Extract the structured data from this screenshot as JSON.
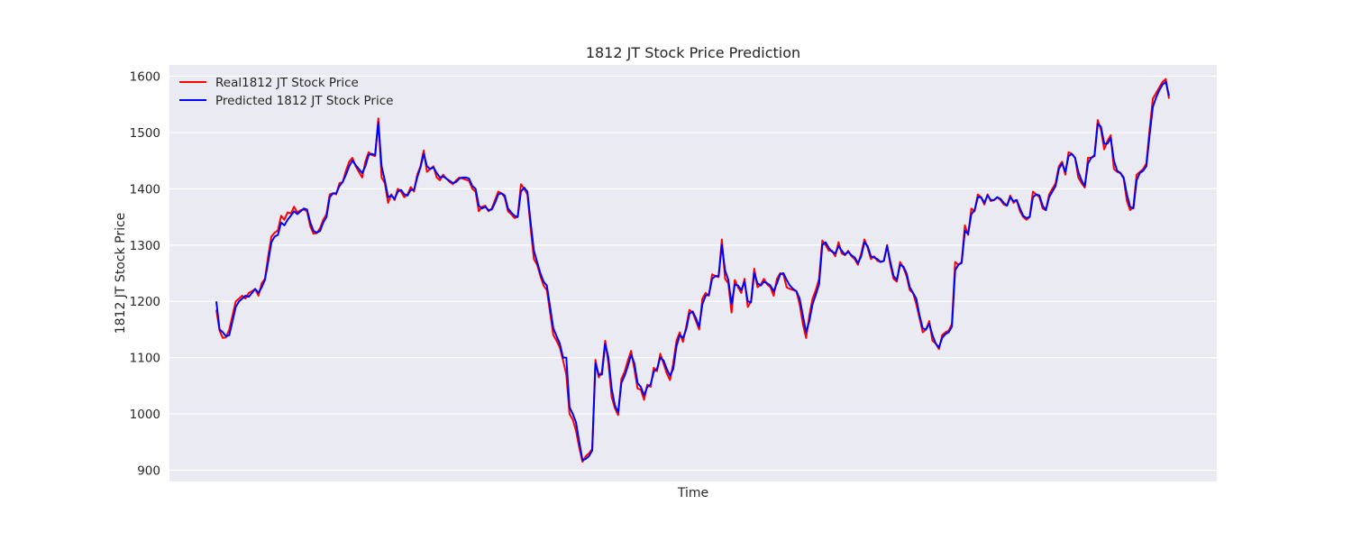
{
  "chart_data": {
    "type": "line",
    "title": "1812 JT Stock Price Prediction",
    "xlabel": "Time",
    "ylabel": "1812 JT Stock Price",
    "ylim": [
      880,
      1620
    ],
    "yticks": [
      900,
      1000,
      1100,
      1200,
      1300,
      1400,
      1500,
      1600
    ],
    "grid": true,
    "legend_position": "top-left",
    "series": [
      {
        "name": "Real1812 JT Stock Price",
        "color": "#ff0000",
        "values": [
          1185,
          1148,
          1135,
          1136,
          1150,
          1175,
          1200,
          1205,
          1210,
          1205,
          1215,
          1218,
          1222,
          1210,
          1232,
          1240,
          1280,
          1315,
          1322,
          1326,
          1352,
          1345,
          1358,
          1356,
          1368,
          1358,
          1362,
          1363,
          1360,
          1333,
          1320,
          1321,
          1330,
          1345,
          1355,
          1390,
          1392,
          1390,
          1410,
          1412,
          1432,
          1448,
          1455,
          1440,
          1430,
          1420,
          1448,
          1465,
          1460,
          1458,
          1525,
          1420,
          1410,
          1375,
          1390,
          1380,
          1400,
          1395,
          1385,
          1390,
          1403,
          1395,
          1425,
          1440,
          1468,
          1430,
          1435,
          1440,
          1420,
          1415,
          1425,
          1418,
          1412,
          1408,
          1415,
          1420,
          1418,
          1416,
          1414,
          1400,
          1395,
          1360,
          1368,
          1370,
          1360,
          1365,
          1380,
          1395,
          1392,
          1385,
          1360,
          1355,
          1348,
          1350,
          1408,
          1400,
          1390,
          1330,
          1275,
          1265,
          1245,
          1228,
          1220,
          1180,
          1140,
          1130,
          1118,
          1095,
          1070,
          1000,
          990,
          970,
          940,
          915,
          925,
          930,
          938,
          1096,
          1065,
          1075,
          1130,
          1090,
          1030,
          1010,
          998,
          1062,
          1075,
          1095,
          1112,
          1080,
          1045,
          1043,
          1025,
          1052,
          1048,
          1082,
          1076,
          1107,
          1090,
          1072,
          1060,
          1090,
          1130,
          1145,
          1128,
          1155,
          1185,
          1180,
          1165,
          1150,
          1205,
          1215,
          1210,
          1248,
          1245,
          1243,
          1310,
          1240,
          1232,
          1180,
          1238,
          1225,
          1215,
          1240,
          1190,
          1200,
          1258,
          1225,
          1230,
          1240,
          1230,
          1225,
          1210,
          1240,
          1250,
          1248,
          1225,
          1222,
          1220,
          1218,
          1195,
          1160,
          1135,
          1175,
          1205,
          1220,
          1240,
          1308,
          1300,
          1290,
          1290,
          1280,
          1305,
          1285,
          1282,
          1290,
          1280,
          1275,
          1265,
          1285,
          1310,
          1295,
          1275,
          1280,
          1272,
          1270,
          1272,
          1300,
          1265,
          1240,
          1235,
          1270,
          1260,
          1245,
          1220,
          1215,
          1195,
          1170,
          1145,
          1150,
          1165,
          1130,
          1125,
          1115,
          1140,
          1145,
          1148,
          1160,
          1270,
          1265,
          1270,
          1335,
          1318,
          1365,
          1360,
          1390,
          1385,
          1372,
          1390,
          1378,
          1380,
          1385,
          1380,
          1372,
          1370,
          1388,
          1375,
          1380,
          1360,
          1350,
          1345,
          1350,
          1395,
          1390,
          1385,
          1365,
          1362,
          1390,
          1400,
          1410,
          1440,
          1448,
          1425,
          1465,
          1462,
          1455,
          1420,
          1410,
          1402,
          1455,
          1455,
          1460,
          1522,
          1505,
          1470,
          1485,
          1495,
          1435,
          1430,
          1428,
          1418,
          1378,
          1362,
          1368,
          1425,
          1430,
          1435,
          1445,
          1505,
          1560,
          1570,
          1580,
          1590,
          1595,
          1560
        ]
      },
      {
        "name": "Predicted 1812 JT Stock Price",
        "color": "#0000ff",
        "values": [
          1200,
          1150,
          1145,
          1138,
          1140,
          1165,
          1190,
          1200,
          1205,
          1210,
          1208,
          1215,
          1222,
          1215,
          1225,
          1238,
          1270,
          1305,
          1315,
          1318,
          1340,
          1335,
          1345,
          1352,
          1360,
          1355,
          1360,
          1365,
          1363,
          1340,
          1325,
          1322,
          1325,
          1340,
          1350,
          1385,
          1392,
          1392,
          1405,
          1412,
          1425,
          1440,
          1450,
          1442,
          1435,
          1428,
          1440,
          1460,
          1462,
          1460,
          1518,
          1440,
          1415,
          1385,
          1388,
          1382,
          1395,
          1398,
          1390,
          1388,
          1398,
          1398,
          1420,
          1438,
          1462,
          1440,
          1435,
          1438,
          1428,
          1420,
          1422,
          1418,
          1414,
          1410,
          1412,
          1418,
          1420,
          1420,
          1418,
          1405,
          1400,
          1370,
          1365,
          1368,
          1362,
          1363,
          1375,
          1390,
          1392,
          1388,
          1365,
          1358,
          1352,
          1350,
          1395,
          1402,
          1395,
          1340,
          1290,
          1270,
          1250,
          1235,
          1228,
          1190,
          1152,
          1138,
          1125,
          1100,
          1100,
          1012,
          1000,
          985,
          950,
          918,
          920,
          925,
          935,
          1090,
          1070,
          1070,
          1125,
          1100,
          1045,
          1015,
          1003,
          1055,
          1068,
          1085,
          1105,
          1090,
          1055,
          1048,
          1033,
          1048,
          1052,
          1075,
          1080,
          1100,
          1095,
          1080,
          1068,
          1080,
          1120,
          1140,
          1135,
          1150,
          1178,
          1182,
          1170,
          1155,
          1195,
          1210,
          1212,
          1240,
          1245,
          1245,
          1300,
          1255,
          1238,
          1195,
          1230,
          1228,
          1220,
          1235,
          1200,
          1198,
          1250,
          1232,
          1228,
          1235,
          1232,
          1228,
          1218,
          1232,
          1248,
          1250,
          1238,
          1228,
          1222,
          1218,
          1205,
          1175,
          1145,
          1165,
          1195,
          1212,
          1230,
          1300,
          1305,
          1295,
          1288,
          1285,
          1298,
          1290,
          1283,
          1288,
          1282,
          1278,
          1268,
          1280,
          1305,
          1298,
          1280,
          1278,
          1275,
          1270,
          1272,
          1298,
          1270,
          1245,
          1238,
          1265,
          1262,
          1250,
          1225,
          1215,
          1205,
          1175,
          1152,
          1150,
          1160,
          1140,
          1125,
          1118,
          1135,
          1142,
          1145,
          1155,
          1255,
          1265,
          1268,
          1325,
          1320,
          1355,
          1362,
          1385,
          1385,
          1375,
          1388,
          1380,
          1380,
          1385,
          1382,
          1375,
          1370,
          1385,
          1378,
          1380,
          1365,
          1352,
          1348,
          1350,
          1385,
          1390,
          1388,
          1370,
          1362,
          1385,
          1395,
          1405,
          1435,
          1445,
          1430,
          1458,
          1462,
          1455,
          1430,
          1415,
          1405,
          1445,
          1455,
          1458,
          1515,
          1510,
          1480,
          1480,
          1490,
          1450,
          1432,
          1428,
          1420,
          1390,
          1368,
          1365,
          1415,
          1428,
          1432,
          1440,
          1495,
          1545,
          1562,
          1575,
          1585,
          1590,
          1565
        ]
      }
    ]
  }
}
